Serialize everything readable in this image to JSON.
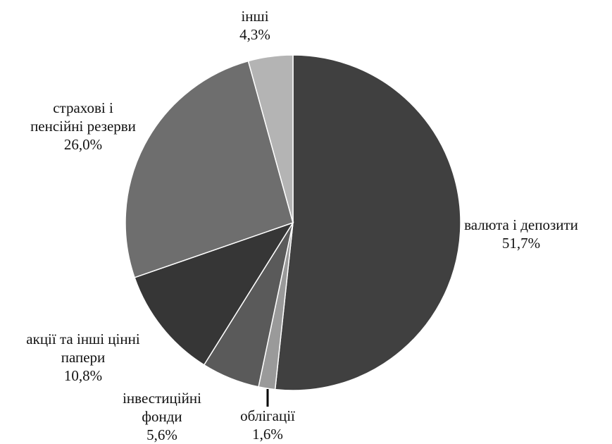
{
  "chart_data": {
    "type": "pie",
    "start": "12 o'clock",
    "direction": "clockwise",
    "slices": [
      {
        "label_lines": [
          "валюта і депозити"
        ],
        "pct_text": "51,7%",
        "value": 51.7,
        "color": "#404040"
      },
      {
        "label_lines": [
          "облігації"
        ],
        "pct_text": "1,6%",
        "value": 1.6,
        "color": "#9a9a9a"
      },
      {
        "label_lines": [
          "інвестиційні",
          "фонди"
        ],
        "pct_text": "5,6%",
        "value": 5.6,
        "color": "#5a5a5a"
      },
      {
        "label_lines": [
          "акції та інші цінні",
          "папери"
        ],
        "pct_text": "10,8%",
        "value": 10.8,
        "color": "#363636"
      },
      {
        "label_lines": [
          "страхові і",
          "пенсійні резерви"
        ],
        "pct_text": "26,0%",
        "value": 26.0,
        "color": "#6e6e6e"
      },
      {
        "label_lines": [
          "інші"
        ],
        "pct_text": "4,3%",
        "value": 4.3,
        "color": "#b4b4b4"
      }
    ]
  }
}
